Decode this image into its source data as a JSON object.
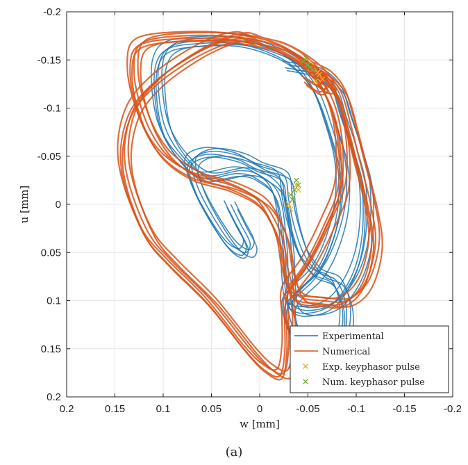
{
  "chart_data": {
    "type": "line",
    "xlabel": "w [mm]",
    "ylabel": "u [mm]",
    "xlim": [
      0.2,
      -0.2
    ],
    "ylim": [
      0.2,
      -0.2
    ],
    "x_reversed": true,
    "y_reversed": true,
    "grid": true,
    "legend_placement": "bottom-right",
    "xticks": [
      0.2,
      0.15,
      0.1,
      0.05,
      0,
      -0.05,
      -0.1,
      -0.15,
      -0.2
    ],
    "xtick_labels": [
      "0.2",
      "0.15",
      "0.1",
      "0.05",
      "0",
      "-0.05",
      "-0.1",
      "-0.15",
      "-0.2"
    ],
    "yticks": [
      -0.2,
      -0.15,
      -0.1,
      -0.05,
      0,
      0.05,
      0.1,
      0.15,
      0.2
    ],
    "ytick_labels": [
      "-0.2",
      "-0.15",
      "-0.1",
      "-0.05",
      "0",
      "0.05",
      "0.1",
      "0.15",
      "0.2"
    ],
    "series": [
      {
        "name": "Experimental",
        "color": "#1f77b4",
        "x": [
          -0.03,
          -0.06,
          -0.08,
          -0.09,
          -0.1,
          -0.11,
          -0.11,
          -0.1,
          -0.08,
          -0.055,
          -0.035,
          -0.03,
          -0.028,
          -0.02,
          0.0,
          0.02,
          0.055,
          0.08,
          0.098,
          0.105,
          0.103,
          0.09,
          0.06,
          0.02,
          -0.015,
          -0.04,
          -0.06,
          -0.075,
          -0.085,
          -0.085,
          -0.075,
          -0.06,
          -0.04,
          -0.03,
          -0.035,
          -0.05,
          -0.07,
          -0.085,
          -0.09,
          -0.08,
          -0.06,
          -0.045,
          -0.035,
          -0.03,
          -0.025,
          0.0,
          0.02,
          0.05,
          0.07,
          0.065,
          0.05,
          0.03,
          0.015,
          0.01,
          0.02,
          0.03
        ],
        "y": [
          -0.145,
          -0.138,
          -0.12,
          -0.09,
          -0.06,
          -0.02,
          0.03,
          0.07,
          0.1,
          0.11,
          0.105,
          0.08,
          0.04,
          -0.01,
          -0.03,
          -0.035,
          -0.03,
          -0.05,
          -0.08,
          -0.12,
          -0.15,
          -0.165,
          -0.17,
          -0.17,
          -0.16,
          -0.145,
          -0.12,
          -0.08,
          -0.04,
          0.0,
          0.04,
          0.07,
          0.09,
          0.105,
          0.13,
          0.16,
          0.165,
          0.15,
          0.11,
          0.08,
          0.07,
          0.05,
          0.02,
          -0.005,
          -0.03,
          -0.04,
          -0.05,
          -0.055,
          -0.045,
          -0.02,
          0.01,
          0.04,
          0.05,
          0.04,
          0.02,
          0.0
        ]
      },
      {
        "name": "Numerical",
        "color": "#d95319",
        "x": [
          -0.05,
          -0.07,
          -0.085,
          -0.095,
          -0.105,
          -0.115,
          -0.12,
          -0.11,
          -0.09,
          -0.065,
          -0.04,
          -0.03,
          -0.025,
          -0.015,
          0.0,
          0.03,
          0.065,
          0.095,
          0.115,
          0.128,
          0.13,
          0.125,
          0.11,
          0.08,
          0.04,
          0.0,
          -0.03,
          -0.055,
          -0.075,
          -0.085,
          -0.085,
          -0.07,
          -0.05,
          -0.03,
          -0.03,
          -0.03,
          -0.025,
          -0.01,
          0.01,
          0.05,
          0.09,
          0.115,
          0.135,
          0.14,
          0.13,
          0.105,
          0.07,
          0.04,
          0.02,
          0.01,
          0.0,
          -0.02,
          -0.04,
          -0.06,
          -0.072,
          -0.065,
          -0.05
        ],
        "y": [
          -0.145,
          -0.135,
          -0.115,
          -0.08,
          -0.04,
          0.0,
          0.04,
          0.08,
          0.1,
          0.1,
          0.095,
          0.07,
          0.04,
          0.015,
          -0.005,
          -0.02,
          -0.03,
          -0.05,
          -0.08,
          -0.12,
          -0.15,
          -0.165,
          -0.172,
          -0.175,
          -0.175,
          -0.17,
          -0.16,
          -0.14,
          -0.11,
          -0.07,
          -0.02,
          0.02,
          0.06,
          0.09,
          0.12,
          0.15,
          0.175,
          0.17,
          0.15,
          0.1,
          0.06,
          0.03,
          -0.02,
          -0.06,
          -0.1,
          -0.13,
          -0.155,
          -0.17,
          -0.175,
          -0.174,
          -0.17,
          -0.165,
          -0.155,
          -0.14,
          -0.125,
          -0.12,
          -0.13
        ]
      },
      {
        "name": "Exp. keyphasor pulse",
        "color": "#edb120",
        "marker": "x",
        "x": [
          -0.055,
          -0.06,
          -0.065,
          -0.05,
          -0.058,
          -0.062,
          -0.03,
          -0.035,
          -0.04,
          -0.032,
          -0.038
        ],
        "y": [
          -0.14,
          -0.137,
          -0.13,
          -0.145,
          -0.128,
          -0.135,
          0.0,
          -0.008,
          -0.015,
          0.005,
          -0.02
        ]
      },
      {
        "name": "Num. keyphasor pulse",
        "color": "#77ac30",
        "marker": "x",
        "x": [
          -0.045,
          -0.05,
          -0.055,
          -0.048,
          -0.052,
          -0.032,
          -0.036,
          -0.04,
          -0.034,
          -0.038
        ],
        "y": [
          -0.148,
          -0.145,
          -0.14,
          -0.152,
          -0.142,
          -0.01,
          -0.015,
          -0.02,
          -0.005,
          -0.025
        ]
      }
    ]
  },
  "caption": "(a)"
}
